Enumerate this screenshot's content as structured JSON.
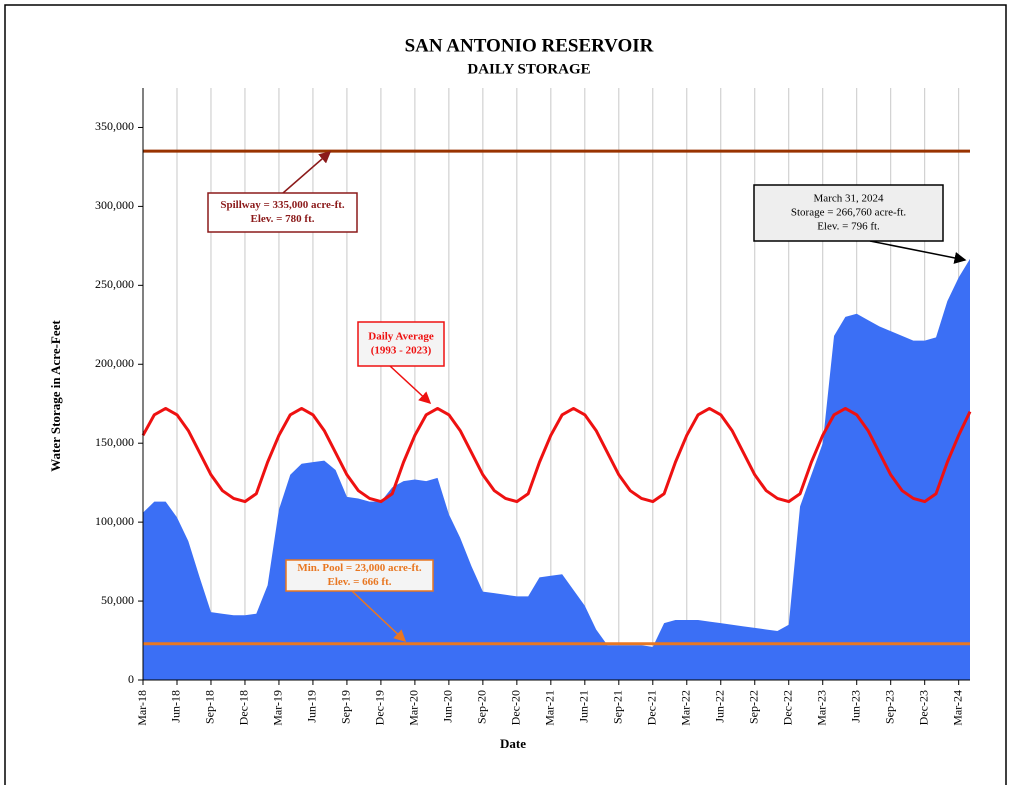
{
  "chart_data": {
    "type": "area",
    "title": "SAN ANTONIO RESERVOIR",
    "subtitle": "DAILY STORAGE",
    "x_label": "Date",
    "y_label": "Water Storage in Acre-Feet",
    "categories": [
      "Mar-18",
      null,
      null,
      "Jun-18",
      null,
      null,
      "Sep-18",
      null,
      null,
      "Dec-18",
      null,
      null,
      "Mar-19",
      null,
      null,
      "Jun-19",
      null,
      null,
      "Sep-19",
      null,
      null,
      "Dec-19",
      null,
      null,
      "Mar-20",
      null,
      null,
      "Jun-20",
      null,
      null,
      "Sep-20",
      null,
      null,
      "Dec-20",
      null,
      null,
      "Mar-21",
      null,
      null,
      "Jun-21",
      null,
      null,
      "Sep-21",
      null,
      null,
      "Dec-21",
      null,
      null,
      "Mar-22",
      null,
      null,
      "Jun-22",
      null,
      null,
      "Sep-22",
      null,
      null,
      "Dec-22",
      null,
      null,
      "Mar-23",
      null,
      null,
      "Jun-23",
      null,
      null,
      "Sep-23",
      null,
      null,
      "Dec-23",
      null,
      null,
      "Mar-24",
      null
    ],
    "series": [
      {
        "name": "Daily Storage",
        "kind": "area",
        "color": "#3b6ff5",
        "values": [
          106000,
          113000,
          113000,
          103000,
          88000,
          65000,
          43000,
          42000,
          41000,
          41000,
          42000,
          60000,
          108000,
          130000,
          137000,
          138000,
          139000,
          133000,
          116000,
          115000,
          113000,
          113000,
          122000,
          126000,
          127000,
          126000,
          128000,
          105000,
          90000,
          72000,
          56000,
          55000,
          54000,
          53000,
          53000,
          65000,
          66000,
          67000,
          57000,
          47000,
          32000,
          22000,
          22000,
          22000,
          22000,
          21000,
          36000,
          38000,
          38000,
          38000,
          37000,
          36000,
          35000,
          34000,
          33000,
          32000,
          31000,
          35000,
          110000,
          130000,
          150000,
          218000,
          230000,
          232000,
          228000,
          224000,
          221000,
          218000,
          215000,
          215000,
          217000,
          240000,
          255000,
          266760
        ]
      },
      {
        "name": "Daily Average",
        "kind": "line",
        "color": "#ee1111",
        "values": [
          155000,
          168000,
          172000,
          168000,
          158000,
          144000,
          130000,
          120000,
          115000,
          113000,
          118000,
          138000,
          155000,
          168000,
          172000,
          168000,
          158000,
          144000,
          130000,
          120000,
          115000,
          113000,
          118000,
          138000,
          155000,
          168000,
          172000,
          168000,
          158000,
          144000,
          130000,
          120000,
          115000,
          113000,
          118000,
          138000,
          155000,
          168000,
          172000,
          168000,
          158000,
          144000,
          130000,
          120000,
          115000,
          113000,
          118000,
          138000,
          155000,
          168000,
          172000,
          168000,
          158000,
          144000,
          130000,
          120000,
          115000,
          113000,
          118000,
          138000,
          155000,
          168000,
          172000,
          168000,
          158000,
          144000,
          130000,
          120000,
          115000,
          113000,
          118000,
          138000,
          155000,
          170000
        ]
      }
    ],
    "hlines": [
      {
        "value": 335000,
        "color": "#993300"
      },
      {
        "value": 23000,
        "color": "#e87722"
      }
    ],
    "annotations": [
      {
        "lines": [
          "Spillway = 335,000 acre-ft.",
          "Elev. = 780 ft."
        ],
        "color": "#8b1a1a"
      },
      {
        "lines": [
          "Daily Average",
          "(1993 - 2023)"
        ],
        "color": "#ee1111"
      },
      {
        "lines": [
          "Min. Pool = 23,000 acre-ft.",
          "Elev. = 666 ft."
        ],
        "color": "#e87722"
      },
      {
        "lines": [
          "March 31, 2024",
          "Storage = 266,760 acre-ft.",
          "Elev. = 796 ft."
        ],
        "color": "#000000"
      }
    ],
    "ylim": [
      0,
      375000
    ],
    "yticks": [
      0,
      {
        "value": 50000,
        "label": "50,000"
      },
      {
        "value": 100000,
        "label": "100,000"
      },
      {
        "value": 150000,
        "label": "150,000"
      },
      {
        "value": 200000,
        "label": "200,000"
      },
      {
        "value": 250000,
        "label": "250,000"
      },
      {
        "value": 300000,
        "label": "300,000"
      },
      {
        "value": 350000,
        "label": "350,000"
      }
    ],
    "grid": true
  }
}
